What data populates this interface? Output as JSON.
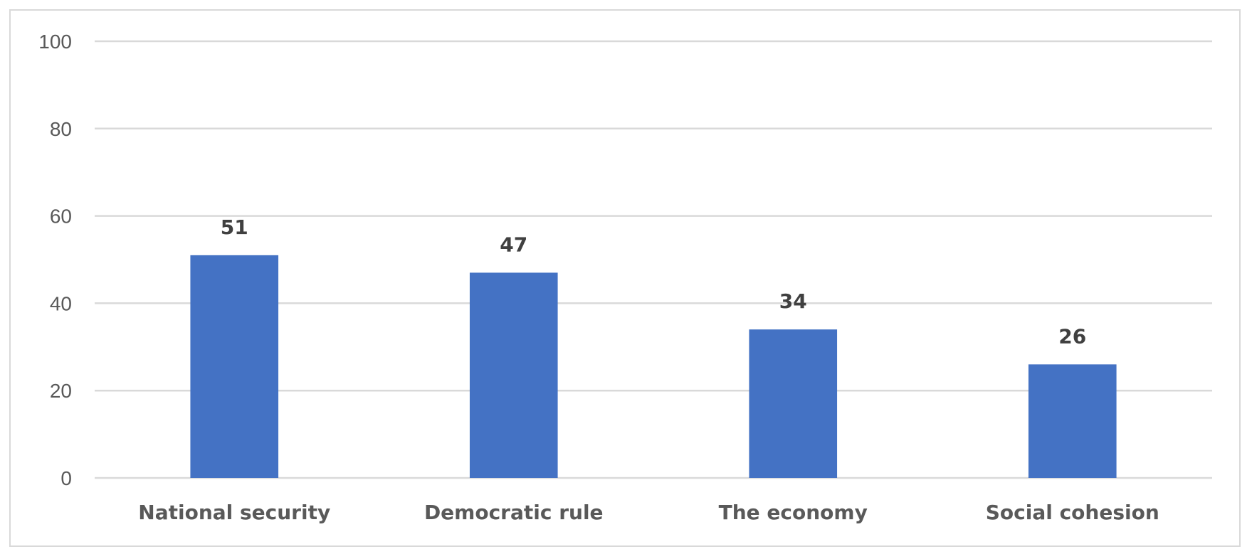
{
  "chart_data": {
    "type": "bar",
    "title": "",
    "xlabel": "",
    "ylabel": "",
    "categories": [
      "National security",
      "Democratic rule",
      "The economy",
      "Social cohesion"
    ],
    "values": [
      51,
      47,
      34,
      26
    ],
    "data_labels": [
      "51",
      "47",
      "34",
      "26"
    ],
    "ylim": [
      0,
      100
    ],
    "yticks": [
      0,
      20,
      40,
      60,
      80,
      100
    ],
    "ytick_labels": [
      "0",
      "20",
      "40",
      "60",
      "80",
      "100"
    ],
    "grid": true,
    "legend": "none",
    "bar_color": "#4472c4",
    "gridline_color": "#d9d9d9",
    "border_color": "#d9d9d9"
  }
}
